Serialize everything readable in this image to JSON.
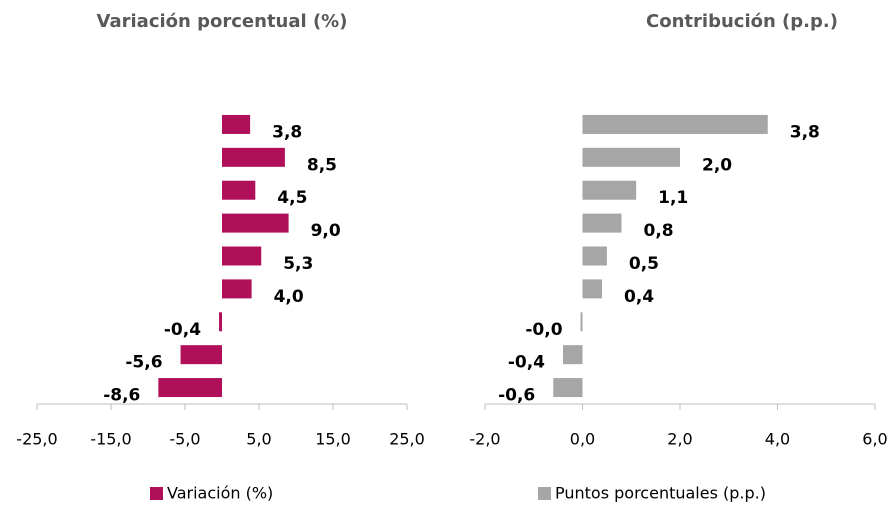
{
  "chart_data": [
    {
      "type": "bar",
      "orientation": "horizontal",
      "title": "Variación porcentual (%)",
      "categories": [
        null,
        null,
        null,
        null,
        null,
        null,
        null,
        null,
        null
      ],
      "series": [
        {
          "name": "Variación (%)",
          "color": "#b0105a",
          "values": [
            3.8,
            8.5,
            4.5,
            9.0,
            5.3,
            4.0,
            -0.4,
            -5.6,
            -8.6
          ],
          "value_labels": [
            "3,8",
            "8,5",
            "4,5",
            "9,0",
            "5,3",
            "4,0",
            "-0,4",
            "-5,6",
            "-8,6"
          ]
        }
      ],
      "xlim": [
        -25,
        25
      ],
      "xticks": [
        {
          "value": -25,
          "label": "-25,0"
        },
        {
          "value": -15,
          "label": "-15,0"
        },
        {
          "value": -5,
          "label": "-5,0"
        },
        {
          "value": 5,
          "label": "5,0"
        },
        {
          "value": 15,
          "label": "15,0"
        },
        {
          "value": 25,
          "label": "25,0"
        }
      ]
    },
    {
      "type": "bar",
      "orientation": "horizontal",
      "title": "Contribución (p.p.)",
      "categories": [
        null,
        null,
        null,
        null,
        null,
        null,
        null,
        null,
        null
      ],
      "series": [
        {
          "name": "Puntos porcentuales (p.p.)",
          "color": "#a6a6a6",
          "values": [
            3.8,
            2.0,
            1.1,
            0.8,
            0.5,
            0.4,
            -0.04,
            -0.4,
            -0.6
          ],
          "value_labels": [
            "3,8",
            "2,0",
            "1,1",
            "0,8",
            "0,5",
            "0,4",
            "-0,0",
            "-0,4",
            "-0,6"
          ]
        }
      ],
      "xlim": [
        -2,
        6
      ],
      "xticks": [
        {
          "value": -2,
          "label": "-2,0"
        },
        {
          "value": 0,
          "label": "0,0"
        },
        {
          "value": 2,
          "label": "2,0"
        },
        {
          "value": 4,
          "label": "4,0"
        },
        {
          "value": 6,
          "label": "6,0"
        }
      ]
    }
  ]
}
